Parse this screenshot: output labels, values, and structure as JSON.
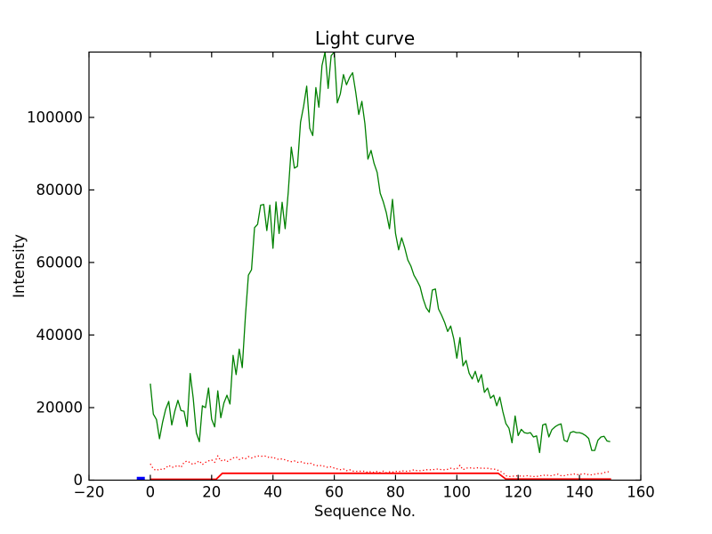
{
  "chart_data": {
    "type": "line",
    "title": "Light curve",
    "xlabel": "Sequence No.",
    "ylabel": "Intensity",
    "xlim": [
      -20,
      160
    ],
    "ylim": [
      0,
      118000
    ],
    "xticks": [
      -20,
      0,
      20,
      40,
      60,
      80,
      100,
      120,
      140,
      160
    ],
    "yticks": [
      0,
      20000,
      40000,
      60000,
      80000,
      100000
    ],
    "grid": false,
    "legend": null,
    "colors": {
      "main_line": "#008000",
      "background_dotted_line": "#ff0000",
      "background_solid_line": "#ff0000",
      "pre_sequence_segment": "#0000ff",
      "axes": "#000000"
    },
    "series": [
      {
        "name": "intensity-green",
        "color": "#008000",
        "style": "solid",
        "linewidth": 1.3,
        "x_start": 0,
        "x_step": 1,
        "values": [
          26600,
          18200,
          16700,
          11400,
          16000,
          19500,
          21700,
          15200,
          19000,
          22000,
          19200,
          19000,
          14800,
          29400,
          22600,
          13000,
          10600,
          20500,
          20000,
          25400,
          16800,
          14700,
          24600,
          17200,
          21300,
          23400,
          21000,
          34400,
          29100,
          36100,
          31000,
          45000,
          56500,
          58000,
          69600,
          70500,
          75800,
          76000,
          68800,
          75800,
          63900,
          76700,
          68000,
          76600,
          69300,
          79500,
          91800,
          86000,
          86500,
          98700,
          103000,
          108600,
          97000,
          95000,
          108200,
          102800,
          114300,
          118000,
          108000,
          117000,
          118000,
          104000,
          106500,
          111800,
          109000,
          111000,
          112300,
          106900,
          100800,
          104400,
          98300,
          88500,
          90900,
          87300,
          84800,
          79100,
          76700,
          73700,
          69300,
          77400,
          68000,
          63500,
          66800,
          64000,
          60700,
          59000,
          56500,
          55000,
          53300,
          50000,
          47500,
          46300,
          52400,
          52700,
          47200,
          45500,
          43500,
          41000,
          42500,
          38900,
          33600,
          39300,
          31500,
          33000,
          29500,
          27900,
          30000,
          27000,
          29100,
          24200,
          25400,
          22600,
          23400,
          20500,
          22900,
          18900,
          15600,
          14300,
          10300,
          17700,
          12300,
          14000,
          13100,
          12900,
          13100,
          11900,
          12200,
          7600,
          15200,
          15500,
          11900,
          13900,
          14700,
          15200,
          15500,
          11000,
          10600,
          13100,
          13400,
          13100,
          13100,
          12800,
          12300,
          11500,
          8200,
          8200,
          11000,
          11900,
          12100,
          10800,
          10600
        ]
      },
      {
        "name": "background-dotted-red",
        "color": "#ff0000",
        "style": "dotted",
        "linewidth": 1.3,
        "x_start": 0,
        "x_step": 1,
        "values": [
          4500,
          3100,
          2650,
          3100,
          2900,
          3300,
          4100,
          3500,
          3700,
          4100,
          3500,
          4900,
          5300,
          4800,
          4300,
          4800,
          5300,
          4300,
          4900,
          5300,
          5600,
          4900,
          6700,
          5300,
          5700,
          5100,
          5600,
          6100,
          6400,
          5700,
          6100,
          5900,
          6500,
          6100,
          6400,
          6700,
          6550,
          6700,
          6550,
          6100,
          6400,
          5900,
          5700,
          5900,
          5600,
          5300,
          5100,
          5300,
          4900,
          5100,
          4800,
          4500,
          4800,
          4300,
          4100,
          3900,
          4100,
          3700,
          3500,
          3700,
          3300,
          3100,
          2900,
          3100,
          2600,
          2900,
          2500,
          2400,
          2500,
          2400,
          2500,
          2100,
          2400,
          2100,
          2400,
          2100,
          2500,
          2050,
          2300,
          2200,
          2460,
          2300,
          2600,
          2460,
          2460,
          2600,
          2870,
          2600,
          2600,
          2700,
          2870,
          2870,
          2870,
          3000,
          3100,
          2870,
          2870,
          3000,
          3280,
          3100,
          3100,
          4100,
          2870,
          3280,
          3440,
          3280,
          3280,
          3440,
          3280,
          3280,
          3280,
          3100,
          3100,
          2870,
          2500,
          2050,
          1230,
          1000,
          1100,
          1100,
          1230,
          1100,
          1100,
          1230,
          1100,
          1000,
          1000,
          1230,
          1230,
          1470,
          1230,
          1230,
          1470,
          1640,
          1230,
          1230,
          1470,
          1470,
          1800,
          1470,
          1640,
          1640,
          1800,
          1470,
          1470,
          1640,
          1800,
          1800,
          2050,
          2300,
          2300
        ]
      },
      {
        "name": "threshold-solid-red",
        "color": "#ff0000",
        "style": "solid",
        "linewidth": 1.8,
        "points": [
          [
            0,
            250
          ],
          [
            21.5,
            250
          ],
          [
            23.5,
            1900
          ],
          [
            113.5,
            1900
          ],
          [
            116,
            300
          ],
          [
            150.3,
            300
          ]
        ]
      },
      {
        "name": "pre-sequence-blue",
        "color": "#0000ff",
        "style": "solid",
        "linewidth": 3.5,
        "points": [
          [
            -4.4,
            500
          ],
          [
            -1.8,
            500
          ]
        ]
      }
    ]
  }
}
